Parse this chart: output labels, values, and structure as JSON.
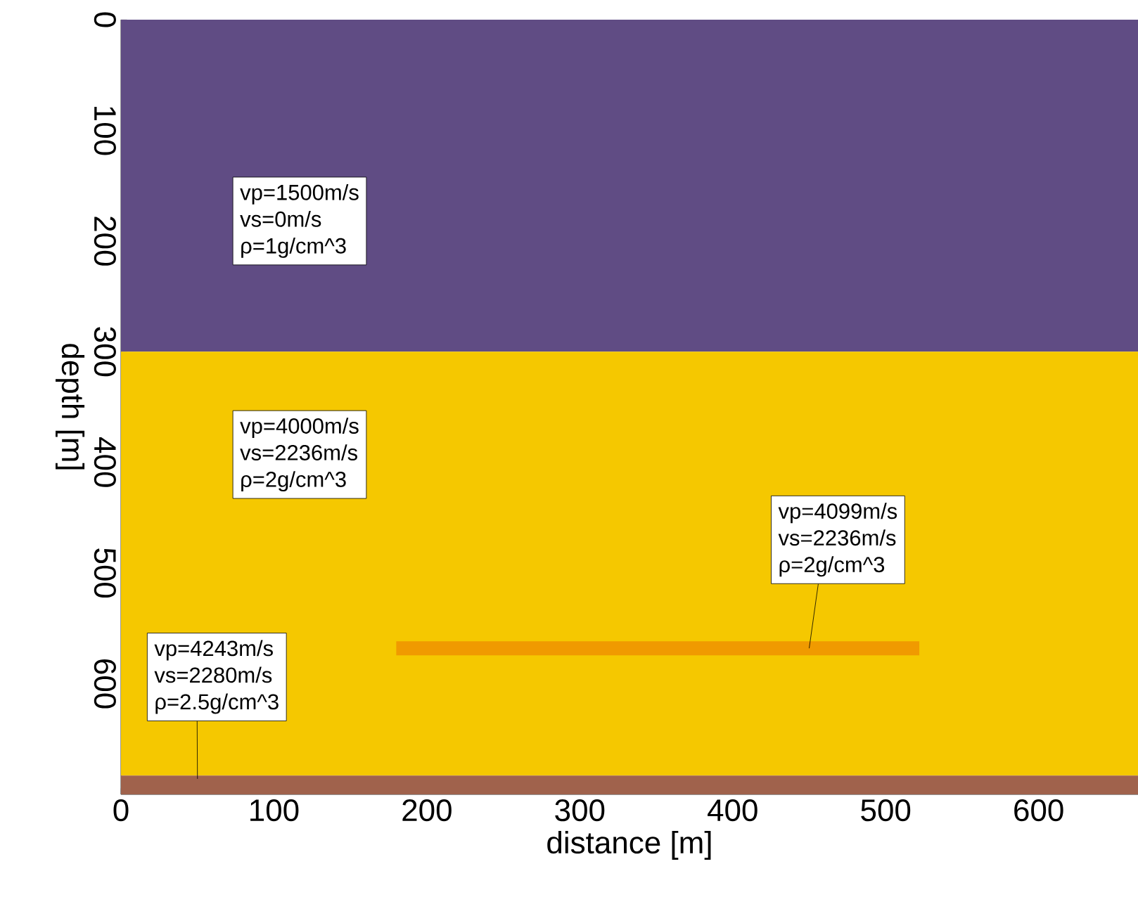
{
  "chart_data": {
    "type": "line",
    "xlabel": "distance [m]",
    "ylabel": "depth [m]",
    "xlim": [
      0,
      665
    ],
    "ylim": [
      700,
      0
    ],
    "xticks": [
      0,
      100,
      200,
      300,
      400,
      500,
      600
    ],
    "yticks": [
      0,
      100,
      200,
      300,
      400,
      500,
      600
    ],
    "bands": [
      {
        "axis": "y",
        "from": 0,
        "to": 300,
        "color": "#604c84"
      },
      {
        "axis": "y",
        "from": 300,
        "to": 683,
        "color": "#f5c800"
      },
      {
        "axis": "y",
        "from": 683,
        "to": 700,
        "color": "#a0624c"
      }
    ],
    "series": [
      {
        "x": [
          180,
          522
        ],
        "values": [
          568,
          568
        ],
        "color": "#f09a00"
      }
    ],
    "annotations": [
      "vp=1500m/s",
      "vs=0m/s",
      "ρ=1g/cm^3",
      "vp=4000m/s",
      "vs=2236m/s",
      "ρ=2g/cm^3",
      "vp=4099m/s",
      "vs=2236m/s",
      {
        "text": "ρ=2g/cm^3",
        "x": 450,
        "y": 568
      },
      "vp=4243m/s",
      "vs=2280m/s",
      {
        "text": "ρ=2.5g/cm^3",
        "x": 50,
        "y": 686
      }
    ]
  }
}
